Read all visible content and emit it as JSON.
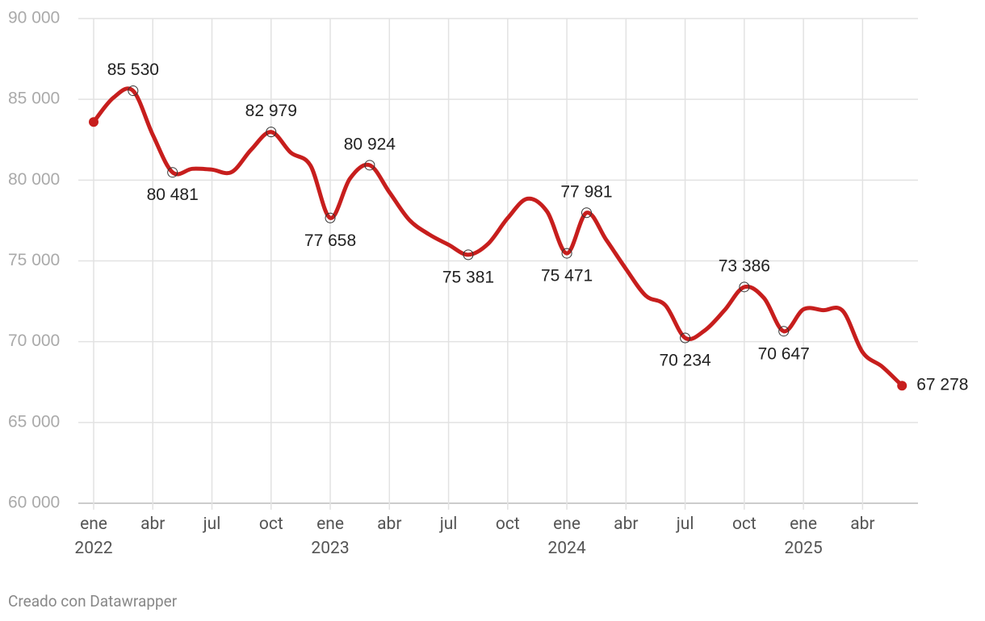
{
  "chart_data": {
    "type": "line",
    "credit": "Creado con Datawrapper",
    "x": [
      "2022-01",
      "2022-02",
      "2022-03",
      "2022-04",
      "2022-05",
      "2022-06",
      "2022-07",
      "2022-08",
      "2022-09",
      "2022-10",
      "2022-11",
      "2022-12",
      "2023-01",
      "2023-02",
      "2023-03",
      "2023-04",
      "2023-05",
      "2023-06",
      "2023-07",
      "2023-08",
      "2023-09",
      "2023-10",
      "2023-11",
      "2023-12",
      "2024-01",
      "2024-02",
      "2024-03",
      "2024-04",
      "2024-05",
      "2024-06",
      "2024-07",
      "2024-08",
      "2024-09",
      "2024-10",
      "2024-11",
      "2024-12",
      "2025-01",
      "2025-02",
      "2025-03",
      "2025-04",
      "2025-05",
      "2025-06"
    ],
    "series": [
      {
        "color": "#c71e1d",
        "values": [
          83600,
          85100,
          85530,
          82800,
          80481,
          80700,
          80650,
          80500,
          81900,
          82979,
          81700,
          80900,
          77658,
          80100,
          80924,
          79250,
          77550,
          76650,
          76000,
          75381,
          76050,
          77650,
          78850,
          78050,
          75471,
          77981,
          76300,
          74500,
          72850,
          72250,
          70234,
          70700,
          71950,
          73386,
          72700,
          70647,
          72000,
          71950,
          71900,
          69350,
          68450,
          67278
        ],
        "value_labels": [
          null,
          null,
          "85 530",
          null,
          "80 481",
          null,
          null,
          null,
          null,
          "82 979",
          null,
          null,
          "77 658",
          null,
          "80 924",
          null,
          null,
          null,
          null,
          "75 381",
          null,
          null,
          null,
          null,
          "75 471",
          "77 981",
          null,
          null,
          null,
          null,
          "70 234",
          null,
          null,
          "73 386",
          null,
          "70 647",
          null,
          null,
          null,
          null,
          null,
          "67 278"
        ]
      }
    ],
    "ylim": [
      60000,
      90000
    ],
    "yticks": [
      {
        "value": 60000,
        "label": "60 000"
      },
      {
        "value": 65000,
        "label": "65 000"
      },
      {
        "value": 70000,
        "label": "70 000"
      },
      {
        "value": 75000,
        "label": "75 000"
      },
      {
        "value": 80000,
        "label": "80 000"
      },
      {
        "value": 85000,
        "label": "85 000"
      },
      {
        "value": 90000,
        "label": "90 000"
      }
    ],
    "xticks": [
      {
        "value": "2022-01",
        "label": "ene 2022"
      },
      {
        "value": "2022-04",
        "label": "abr"
      },
      {
        "value": "2022-07",
        "label": "jul"
      },
      {
        "value": "2022-10",
        "label": "oct"
      },
      {
        "value": "2023-01",
        "label": "ene 2023"
      },
      {
        "value": "2023-04",
        "label": "abr"
      },
      {
        "value": "2023-07",
        "label": "jul"
      },
      {
        "value": "2023-10",
        "label": "oct"
      },
      {
        "value": "2024-01",
        "label": "ene 2024"
      },
      {
        "value": "2024-04",
        "label": "abr"
      },
      {
        "value": "2024-07",
        "label": "jul"
      },
      {
        "value": "2024-10",
        "label": "oct"
      },
      {
        "value": "2025-01",
        "label": "ene 2025"
      },
      {
        "value": "2025-04",
        "label": "abr"
      }
    ],
    "grid": true
  }
}
